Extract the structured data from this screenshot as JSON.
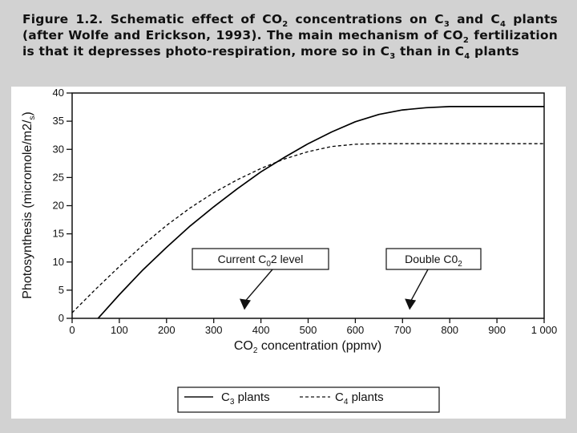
{
  "caption": {
    "segments": [
      {
        "t": "Figure 1.2. Schematic effect of CO"
      },
      {
        "t": "2",
        "sub": true
      },
      {
        "t": " concentrations on C"
      },
      {
        "t": "3",
        "sub": true
      },
      {
        "t": " and C"
      },
      {
        "t": "4",
        "sub": true
      },
      {
        "t": " plants (after Wolfe and Erickson, 1993). The main mechanism of CO"
      },
      {
        "t": "2",
        "sub": true
      },
      {
        "t": " fertilization is that it depresses photo-respiration, more so in C"
      },
      {
        "t": "3",
        "sub": true
      },
      {
        "t": " than in C"
      },
      {
        "t": "4",
        "sub": true
      },
      {
        "t": " plants"
      }
    ]
  },
  "chart_data": {
    "type": "line",
    "xlabel": "CO2 concentration (ppmv)",
    "ylabel": "Photosynthesis (micromole/m2/s)",
    "xlim": [
      0,
      1000
    ],
    "ylim": [
      0,
      40
    ],
    "x_ticks": [
      0,
      100,
      200,
      300,
      400,
      500,
      600,
      700,
      800,
      900,
      1000
    ],
    "x_tick_labels": [
      "0",
      "100",
      "200",
      "300",
      "400",
      "500",
      "600",
      "700",
      "800",
      "900",
      "1 000"
    ],
    "y_ticks": [
      0,
      5,
      10,
      15,
      20,
      25,
      30,
      35,
      40
    ],
    "y_tick_labels": [
      "0",
      "5",
      "10",
      "15",
      "20",
      "25",
      "30",
      "35",
      "40"
    ],
    "grid": false,
    "legend_position": "bottom",
    "series": [
      {
        "name": "C3 plants",
        "style": "solid",
        "color": "#000000",
        "x": [
          55,
          100,
          150,
          200,
          250,
          300,
          350,
          400,
          450,
          500,
          550,
          600,
          650,
          700,
          750,
          800,
          850,
          900,
          950,
          1000
        ],
        "y": [
          0,
          4.2,
          8.6,
          12.6,
          16.4,
          19.8,
          23.0,
          26.0,
          28.6,
          31.0,
          33.1,
          34.9,
          36.2,
          37.0,
          37.4,
          37.6,
          37.6,
          37.6,
          37.6,
          37.6
        ]
      },
      {
        "name": "C4 plants",
        "style": "dashed",
        "color": "#000000",
        "x": [
          0,
          50,
          100,
          150,
          200,
          250,
          300,
          350,
          400,
          450,
          500,
          550,
          600,
          650,
          700,
          750,
          800,
          900,
          1000
        ],
        "y": [
          1.0,
          5.2,
          9.2,
          13.0,
          16.5,
          19.6,
          22.3,
          24.6,
          26.6,
          28.3,
          29.6,
          30.5,
          30.9,
          31.0,
          31.0,
          31.0,
          31.0,
          31.0,
          31.0
        ]
      }
    ],
    "annotations": [
      {
        "label": "Current C02 level",
        "sub_index": 9,
        "arrow_x": 365,
        "arrow_y": 1.5
      },
      {
        "label": "Double C02",
        "sub_index": 9,
        "arrow_x": 715,
        "arrow_y": 1.5
      }
    ],
    "legend": [
      "C3 plants",
      "C4 plants"
    ]
  }
}
